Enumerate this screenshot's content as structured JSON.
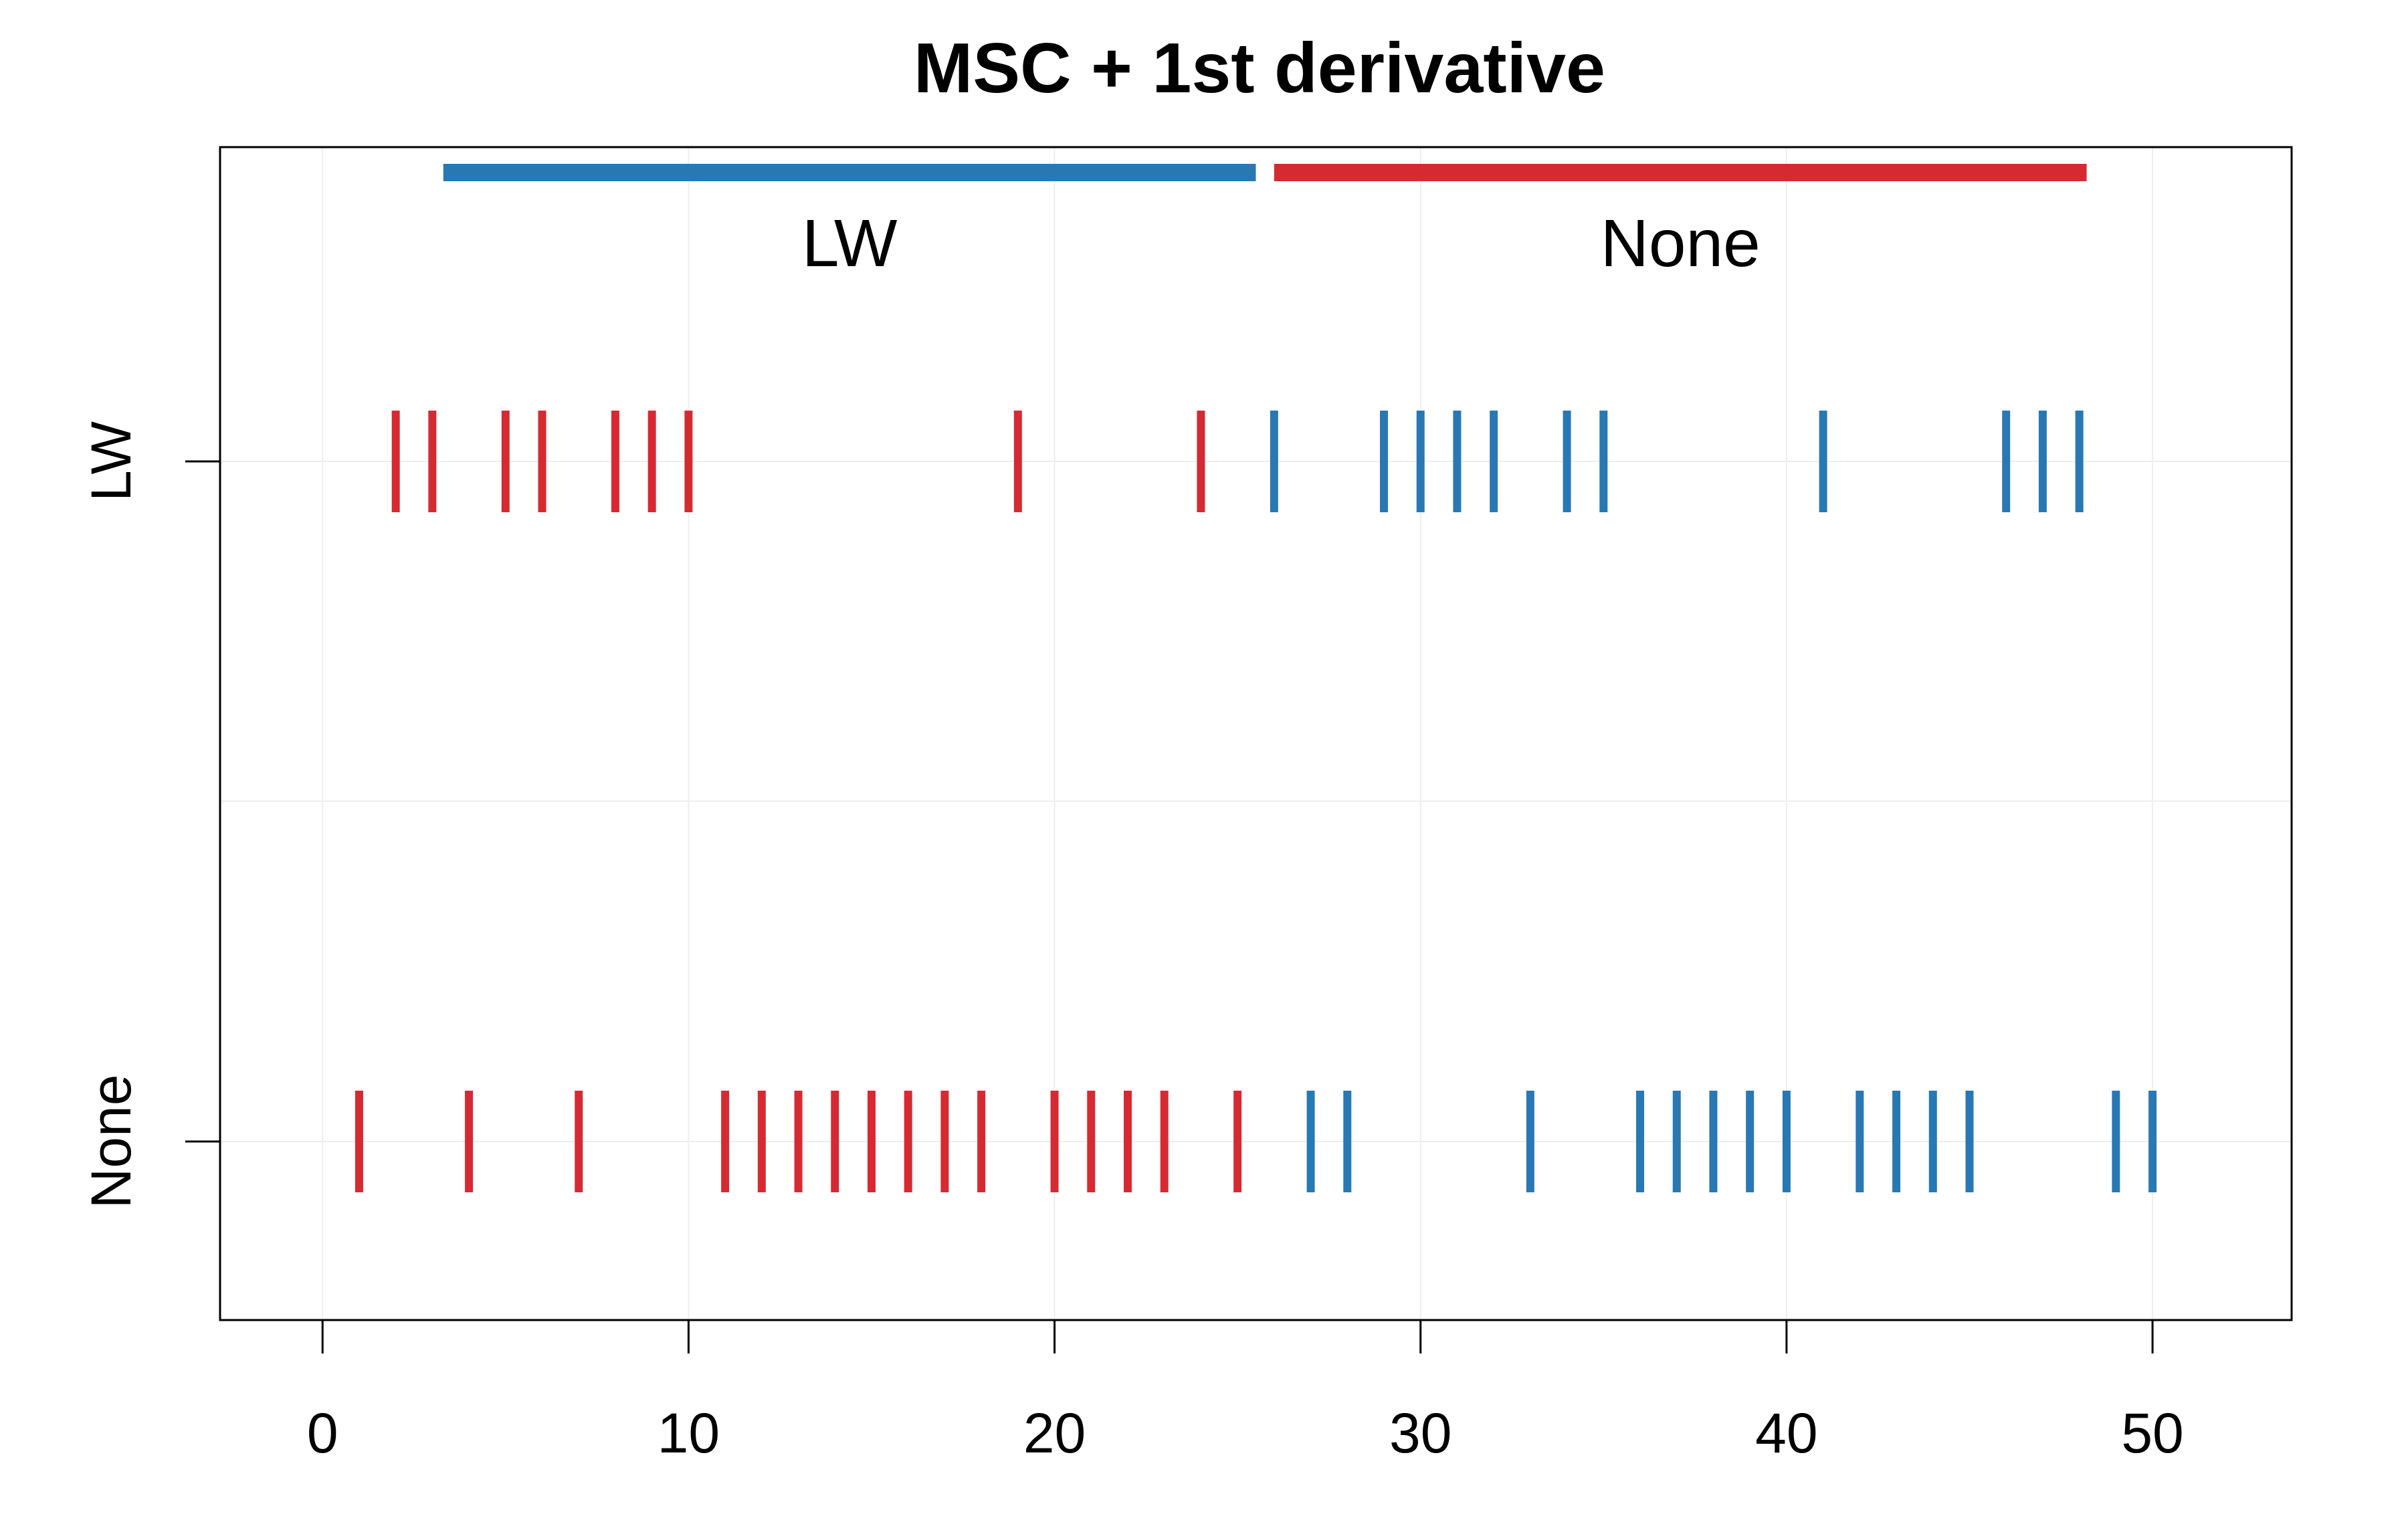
{
  "chart_data": {
    "type": "scatter",
    "title": "MSC + 1st derivative",
    "xlabel": "",
    "ylabel": "",
    "xlim": [
      -2.8,
      53.8
    ],
    "xticks": [
      0,
      10,
      20,
      30,
      40,
      50
    ],
    "rows": [
      "LW",
      "None"
    ],
    "grid": true,
    "colors": {
      "blue": "#2878b4",
      "red": "#d62a33"
    },
    "group_bars": [
      {
        "label": "LW",
        "color": "blue",
        "x_start": 3.3,
        "x_end": 25.5
      },
      {
        "label": "None",
        "color": "red",
        "x_start": 26.0,
        "x_end": 48.2
      }
    ],
    "series": [
      {
        "row": "LW",
        "color": "red",
        "x": [
          2,
          3,
          5,
          6,
          8,
          9,
          10,
          19,
          24
        ]
      },
      {
        "row": "LW",
        "color": "blue",
        "x": [
          26,
          29,
          30,
          31,
          32,
          34,
          35,
          41,
          46,
          47,
          48
        ]
      },
      {
        "row": "None",
        "color": "red",
        "x": [
          1,
          4,
          7,
          11,
          12,
          13,
          14,
          15,
          16,
          17,
          18,
          20,
          21,
          22,
          23,
          25
        ]
      },
      {
        "row": "None",
        "color": "blue",
        "x": [
          27,
          28,
          33,
          36,
          37,
          38,
          39,
          40,
          42,
          43,
          44,
          45,
          49,
          50
        ]
      }
    ]
  }
}
